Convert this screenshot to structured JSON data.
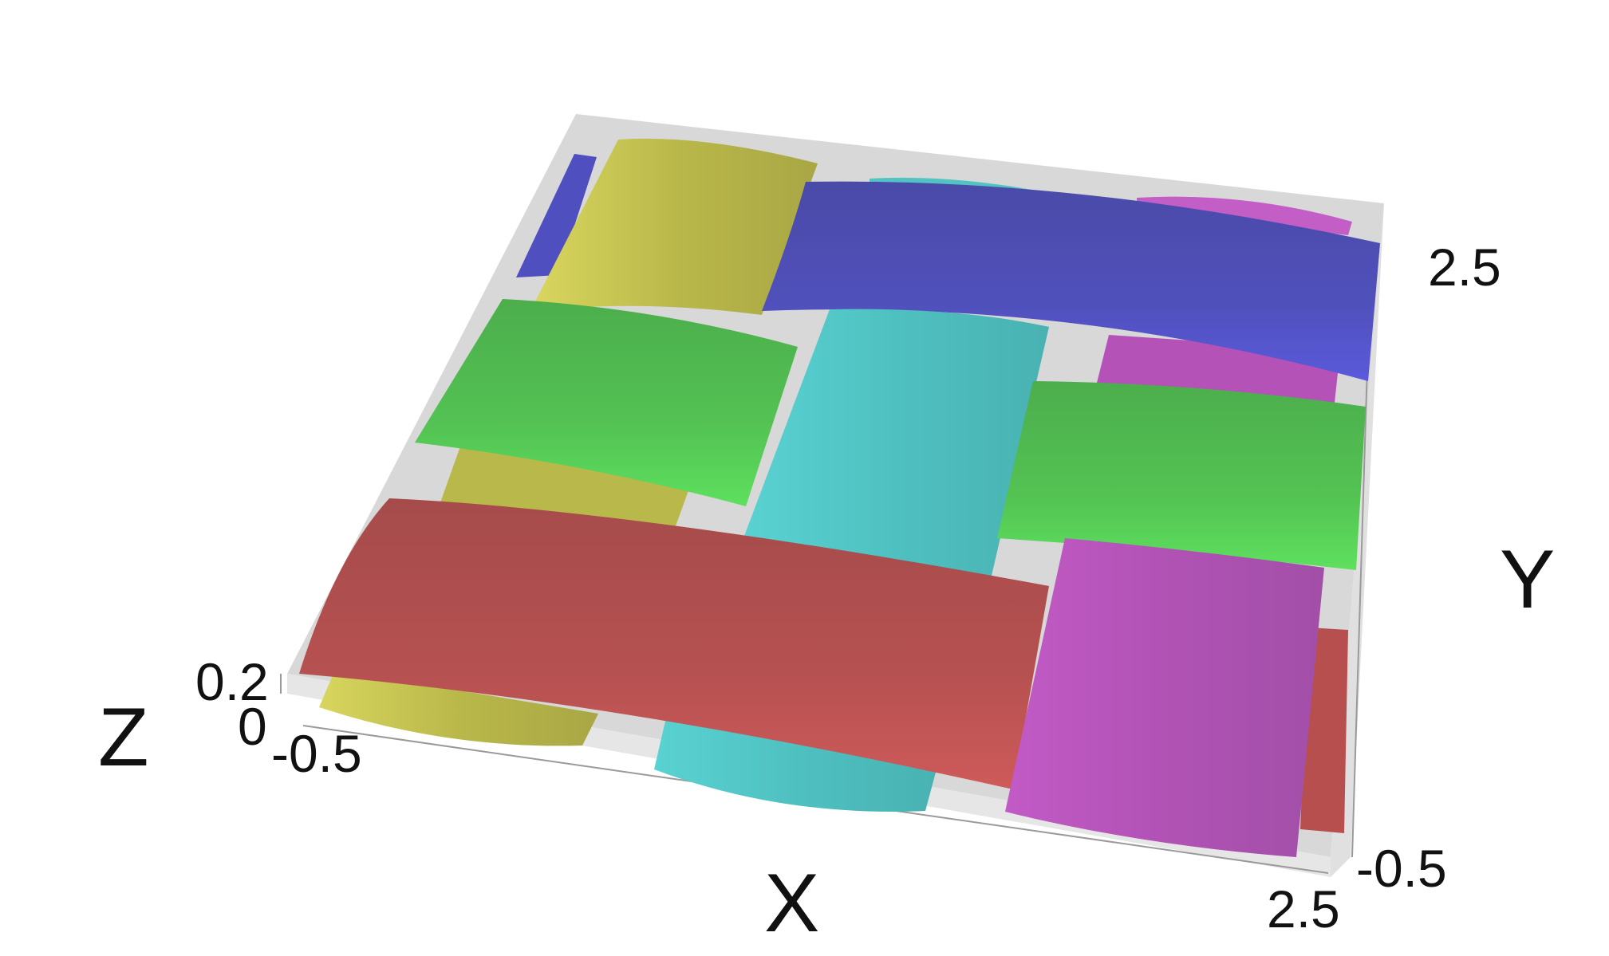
{
  "figure": {
    "type": "3d-surface-weave",
    "colors": {
      "background": "#ffffff",
      "box": "#d6d6d6",
      "box_edge": "#bdbdbd",
      "yellow": "#c4c24a",
      "blue": "#4f4fbf",
      "cyan": "#52c2c2",
      "magenta": "#b452b8",
      "green": "#55c455",
      "red": "#b84f4f"
    },
    "axes": {
      "x": {
        "title": "X",
        "min_tick": "-0.5",
        "max_tick": "2.5"
      },
      "y": {
        "title": "Y",
        "min_tick": "-0.5",
        "max_tick": "2.5"
      },
      "z": {
        "title": "Z",
        "ticks": [
          "0",
          "0.2"
        ]
      }
    },
    "weft_strands": [
      {
        "name": "yellow",
        "color_key": "yellow"
      },
      {
        "name": "cyan",
        "color_key": "cyan"
      },
      {
        "name": "magenta",
        "color_key": "magenta"
      }
    ],
    "warp_strands": [
      {
        "name": "red",
        "color_key": "red"
      },
      {
        "name": "green",
        "color_key": "green"
      },
      {
        "name": "blue",
        "color_key": "blue"
      }
    ]
  }
}
